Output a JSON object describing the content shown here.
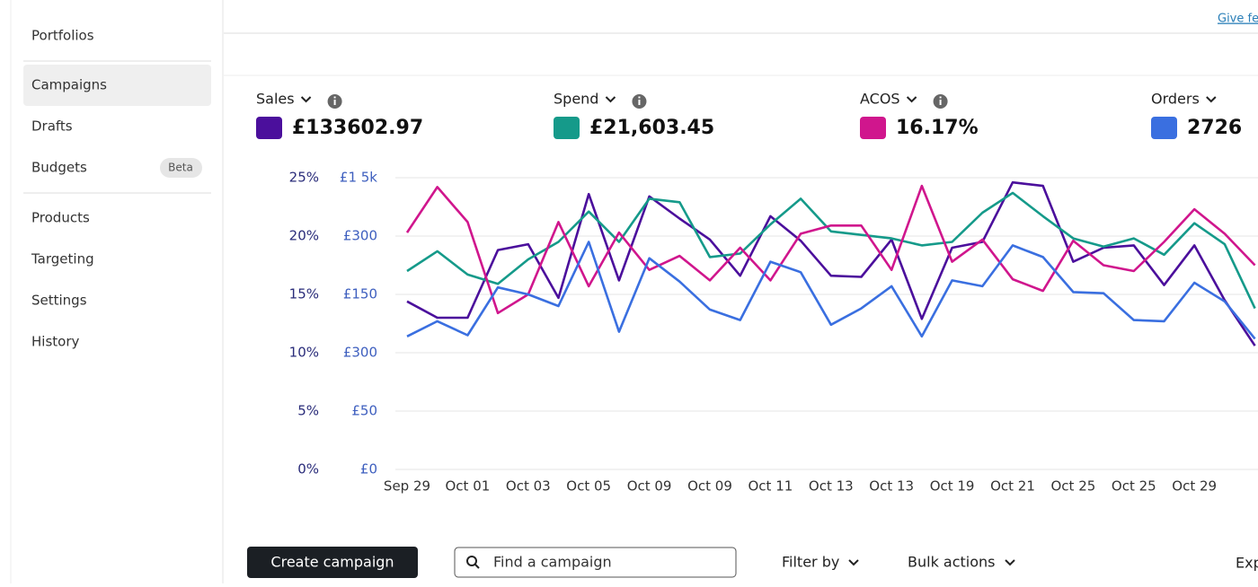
{
  "sidebar": {
    "items": [
      "Portfolios",
      "Campaigns",
      "Drafts",
      "Budgets",
      "Products",
      "Targeting",
      "Settings",
      "History"
    ],
    "badge": "Beta"
  },
  "header": {
    "feedback_link": "Give fe"
  },
  "toolbar": {
    "create_button": "Create campaign",
    "search_placeholder": "Find a campaign",
    "filter": "Filter by",
    "bulk": "Bulk actions",
    "export": "Exp"
  },
  "chart_data": {
    "type": "line",
    "categories": [
      "Sep 29",
      null,
      "Oct 01",
      null,
      "Oct 03",
      null,
      "Oct 05",
      null,
      "Oct 09",
      null,
      "Oct 09",
      null,
      "Oct 11",
      null,
      "Oct 13",
      null,
      "Oct 13",
      null,
      "Oct 19",
      null,
      "Oct 21",
      null,
      "Oct 25",
      null,
      "Oct 25",
      null,
      "Oct 29",
      null,
      null
    ],
    "series": [
      {
        "name": "Sales",
        "total": "£133602.97",
        "color": "#4b0f9c",
        "values": [
          14.4,
          13.0,
          13.0,
          18.8,
          19.3,
          14.7,
          23.6,
          16.2,
          23.4,
          21.5,
          19.7,
          16.6,
          21.7,
          19.6,
          16.6,
          16.5,
          19.7,
          12.9,
          19.0,
          19.5,
          24.6,
          24.3,
          17.8,
          19.0,
          19.2,
          15.8,
          19.2,
          14.5,
          10.6
        ]
      },
      {
        "name": "Spend",
        "total": "£21,603.45",
        "color": "#159a8a",
        "values": [
          17.0,
          18.7,
          16.7,
          15.9,
          18.0,
          19.5,
          22.1,
          19.5,
          23.2,
          22.9,
          18.2,
          18.5,
          21.0,
          23.2,
          20.4,
          20.1,
          19.8,
          19.2,
          19.5,
          22.0,
          23.7,
          21.7,
          19.8,
          19.1,
          19.8,
          18.4,
          21.1,
          19.3,
          13.8
        ]
      },
      {
        "name": "ACOS",
        "total": "16.17%",
        "color": "#d0168d",
        "values": [
          20.3,
          24.2,
          21.2,
          13.4,
          15.0,
          21.2,
          15.7,
          20.3,
          17.1,
          18.3,
          16.2,
          19.0,
          16.2,
          20.2,
          20.9,
          20.9,
          17.1,
          24.3,
          17.8,
          19.7,
          16.3,
          15.3,
          19.6,
          17.5,
          17.0,
          19.5,
          22.3,
          20.2,
          17.5
        ]
      },
      {
        "name": "Orders",
        "total": "2726",
        "color": "#3a6fe0",
        "values": [
          11.4,
          12.7,
          11.5,
          15.6,
          15.0,
          14.0,
          19.5,
          11.8,
          18.1,
          16.1,
          13.7,
          12.8,
          17.8,
          16.9,
          12.4,
          13.8,
          15.7,
          11.4,
          16.2,
          15.7,
          19.2,
          18.2,
          15.2,
          15.1,
          12.8,
          12.7,
          16.0,
          14.4,
          11.2
        ]
      }
    ],
    "ylim": [
      0,
      25
    ],
    "yticks": [
      {
        "value": 0,
        "label": "0%"
      },
      {
        "value": 5,
        "label": "5%"
      },
      {
        "value": 10,
        "label": "10%"
      },
      {
        "value": 15,
        "label": "15%"
      },
      {
        "value": 20,
        "label": "20%"
      },
      {
        "value": 25,
        "label": "25%"
      }
    ],
    "y2_tick_labels": [
      "£0",
      "£50",
      "£300",
      "£150",
      "£300",
      "£1 5k"
    ],
    "grid": true
  }
}
